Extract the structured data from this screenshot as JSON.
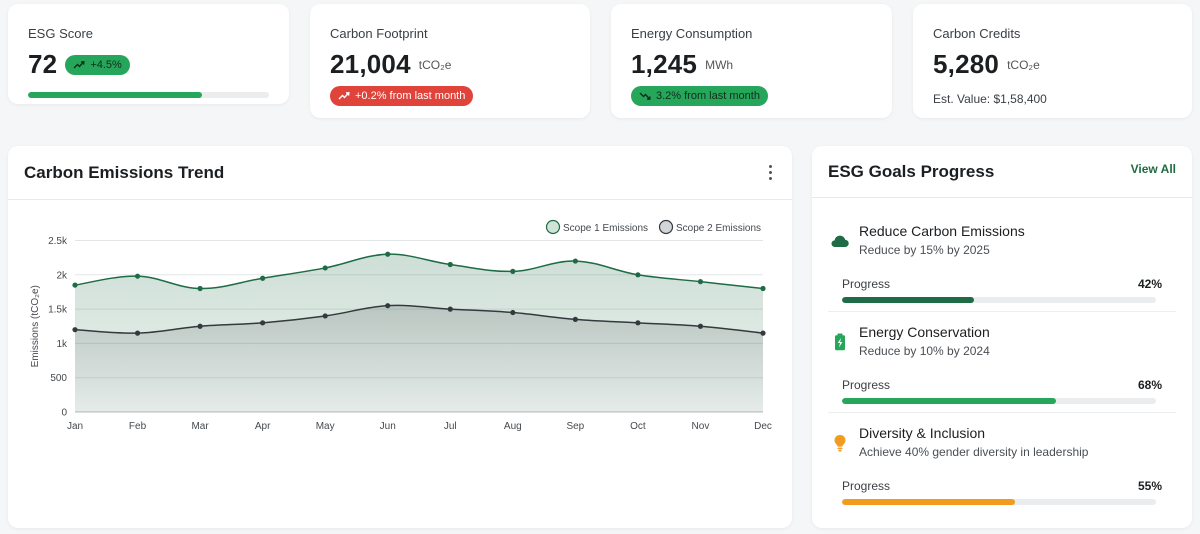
{
  "stats": {
    "esg": {
      "label": "ESG Score",
      "value": "72",
      "badge": "+4.5%",
      "progress": 0.72
    },
    "carbon": {
      "label": "Carbon Footprint",
      "value": "21,004",
      "unit": "tCO₂e",
      "badge": "+0.2% from last month"
    },
    "energy": {
      "label": "Energy Consumption",
      "value": "1,245",
      "unit": "MWh",
      "badge": "3.2% from last month"
    },
    "credits": {
      "label": "Carbon Credits",
      "value": "5,280",
      "unit": "tCO₂e",
      "est": "Est. Value: $1,58,400"
    }
  },
  "trend": {
    "title": "Carbon Emissions Trend"
  },
  "chart_data": {
    "type": "area",
    "title": "Carbon Emissions Trend",
    "xlabel": "",
    "ylabel": "Emissions (tCO₂e)",
    "ylim": [
      0,
      2500
    ],
    "yticks": [
      0,
      500,
      1000,
      1500,
      2000,
      2500
    ],
    "ytick_labels": [
      "0",
      "500",
      "1k",
      "1.5k",
      "2k",
      "2.5k"
    ],
    "categories": [
      "Jan",
      "Feb",
      "Mar",
      "Apr",
      "May",
      "Jun",
      "Jul",
      "Aug",
      "Sep",
      "Oct",
      "Nov",
      "Dec"
    ],
    "series": [
      {
        "name": "Scope 1 Emissions",
        "color": "#1e6b45",
        "values": [
          1850,
          1980,
          1800,
          1950,
          2100,
          2300,
          2150,
          2050,
          2200,
          2000,
          1900,
          1800
        ]
      },
      {
        "name": "Scope 2 Emissions",
        "color": "#34393d",
        "values": [
          1200,
          1150,
          1250,
          1300,
          1400,
          1550,
          1500,
          1450,
          1350,
          1300,
          1250,
          1150
        ]
      }
    ],
    "legend": "top-right",
    "grid": true
  },
  "goals": {
    "title": "ESG Goals Progress",
    "view_all": "View All",
    "items": [
      {
        "title": "Reduce Carbon Emissions",
        "sub": "Reduce by 15% by 2025",
        "progress_label": "Progress",
        "pct": "42%",
        "value": 0.42,
        "color": "#1e6b45",
        "icon": "cloud-icon"
      },
      {
        "title": "Energy Conservation",
        "sub": "Reduce by 10% by 2024",
        "progress_label": "Progress",
        "pct": "68%",
        "value": 0.68,
        "color": "#26a65b",
        "icon": "battery-icon"
      },
      {
        "title": "Diversity & Inclusion",
        "sub": "Achieve 40% gender diversity in leadership",
        "progress_label": "Progress",
        "pct": "55%",
        "value": 0.55,
        "color": "#f29c1f",
        "icon": "lightbulb-icon"
      }
    ]
  }
}
